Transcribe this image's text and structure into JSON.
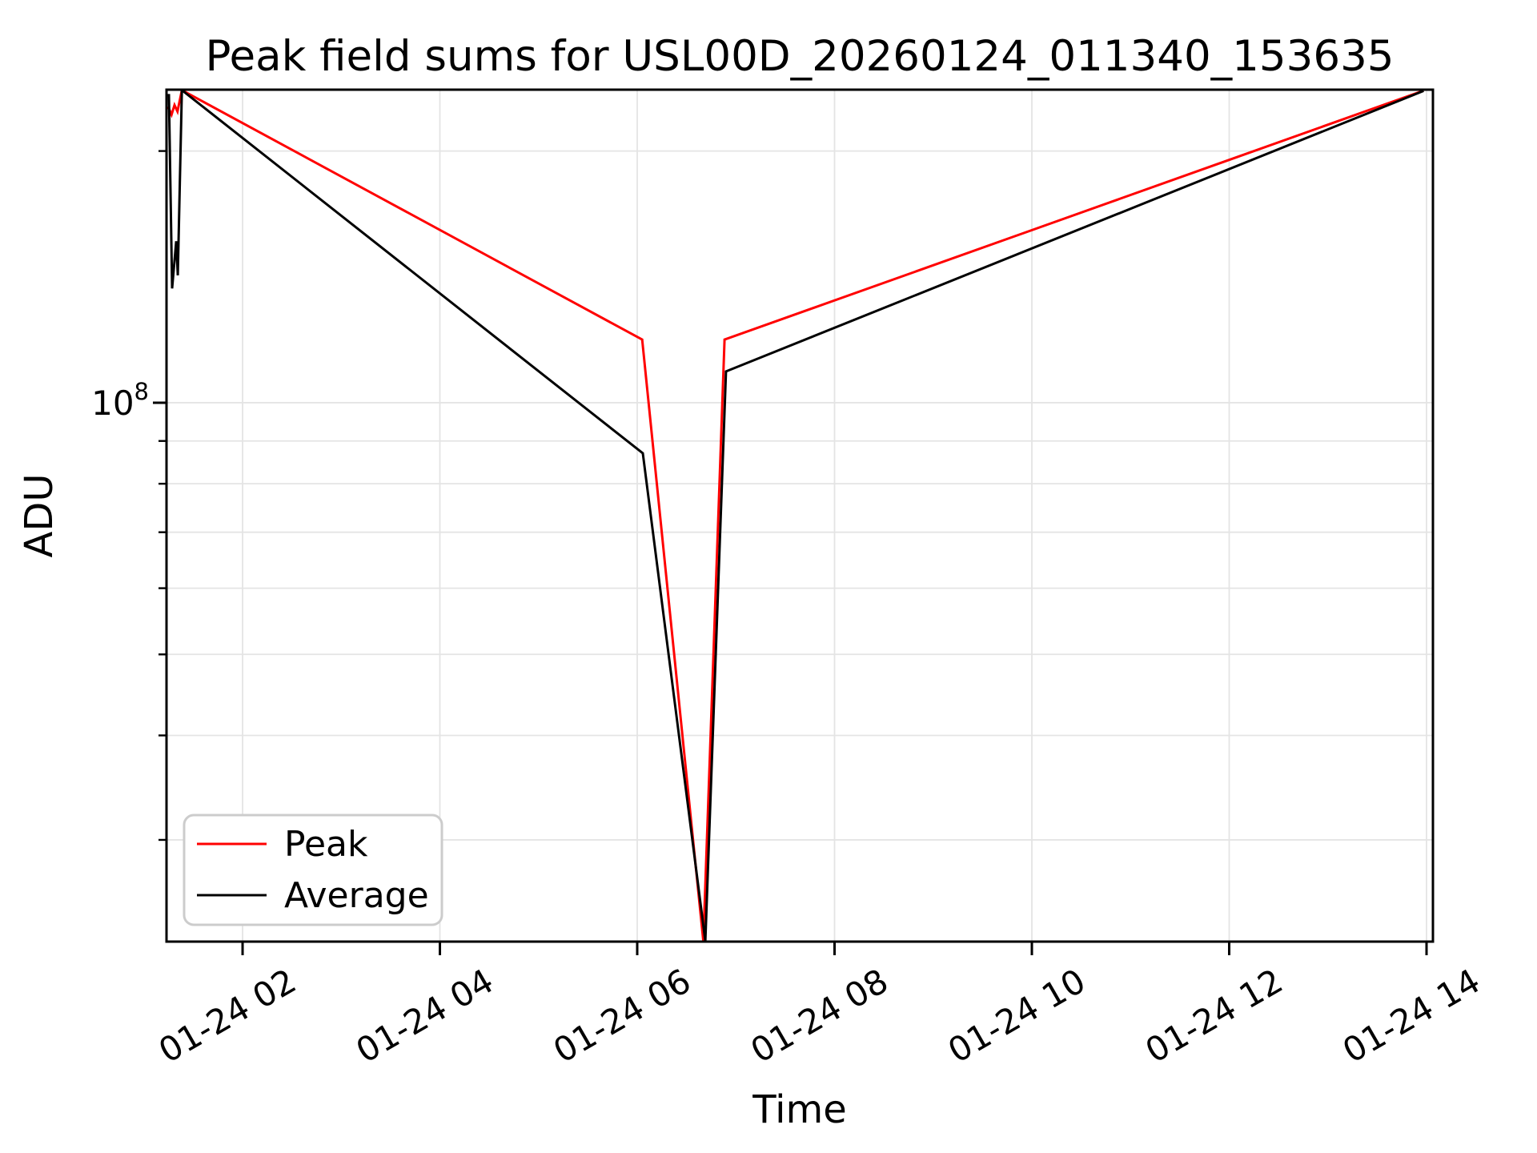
{
  "title": "Peak field sums for USL00D_20260124_011340_153635",
  "colors": {
    "peak_line": "#ff0000",
    "average_line": "#000000",
    "grid": "#e4e4e4",
    "spine": "#000000",
    "legend_border": "#cccccc",
    "background": "#ffffff"
  },
  "chart_data": {
    "type": "line",
    "title": "Peak field sums for USL00D_20260124_011340_153635",
    "xlabel": "Time",
    "ylabel": "ADU",
    "x_unit": "hours on 2026-01-24",
    "y_scale": "log",
    "grid": "both",
    "xlim": [
      1.229,
      14.065
    ],
    "ylim": [
      22670000,
      236800000
    ],
    "x_ticks": [
      {
        "hour": 2,
        "label": "01-24 02"
      },
      {
        "hour": 4,
        "label": "01-24 04"
      },
      {
        "hour": 6,
        "label": "01-24 06"
      },
      {
        "hour": 8,
        "label": "01-24 08"
      },
      {
        "hour": 10,
        "label": "01-24 10"
      },
      {
        "hour": 12,
        "label": "01-24 12"
      },
      {
        "hour": 14,
        "label": "01-24 14"
      }
    ],
    "x_tick_rotation_deg": 30,
    "y_major_ticks": [
      {
        "value": 100000000,
        "mantissa": "10",
        "exponent": "8"
      }
    ],
    "y_minor_ticks": [
      200000000,
      90000000,
      80000000,
      70000000,
      60000000,
      50000000,
      40000000,
      30000000
    ],
    "legend": {
      "position": "lower left",
      "items": [
        {
          "label": "Peak",
          "color": "#ff0000"
        },
        {
          "label": "Average",
          "color": "#000000"
        }
      ]
    },
    "series": [
      {
        "name": "Peak",
        "color": "#ff0000",
        "points": [
          [
            1.245,
            226000000
          ],
          [
            1.28,
            221000000
          ],
          [
            1.31,
            227000000
          ],
          [
            1.34,
            223000000
          ],
          [
            1.385,
            236500000
          ],
          [
            6.05,
            119000000
          ],
          [
            6.67,
            22700000
          ],
          [
            6.885,
            119000000
          ],
          [
            13.97,
            236200000
          ]
        ]
      },
      {
        "name": "Average",
        "color": "#000000",
        "points": [
          [
            1.253,
            234000000
          ],
          [
            1.286,
            137000000
          ],
          [
            1.327,
            156000000
          ],
          [
            1.343,
            142000000
          ],
          [
            1.385,
            236500000
          ],
          [
            6.057,
            87000000
          ],
          [
            6.69,
            22700000
          ],
          [
            6.9,
            109000000
          ],
          [
            13.97,
            236000000
          ]
        ]
      }
    ]
  }
}
